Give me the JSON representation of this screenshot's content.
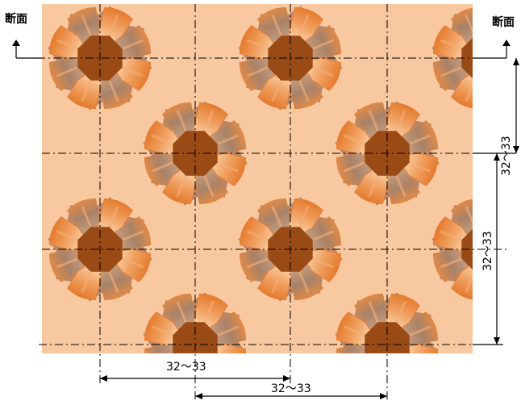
{
  "colors": {
    "background": "#f8c8a0",
    "center": "#9a4a14",
    "petal_light": "#f4b07a",
    "petal_mid": "#e97f33",
    "petal_dark": "#b8876a",
    "line": "#000000"
  },
  "section_mark": {
    "left_label": "断面",
    "right_label": "断面"
  },
  "dimensions": {
    "bottom_1": "32～33",
    "bottom_2": "32～33",
    "right_1": "32～33",
    "right_2": "32～33"
  }
}
